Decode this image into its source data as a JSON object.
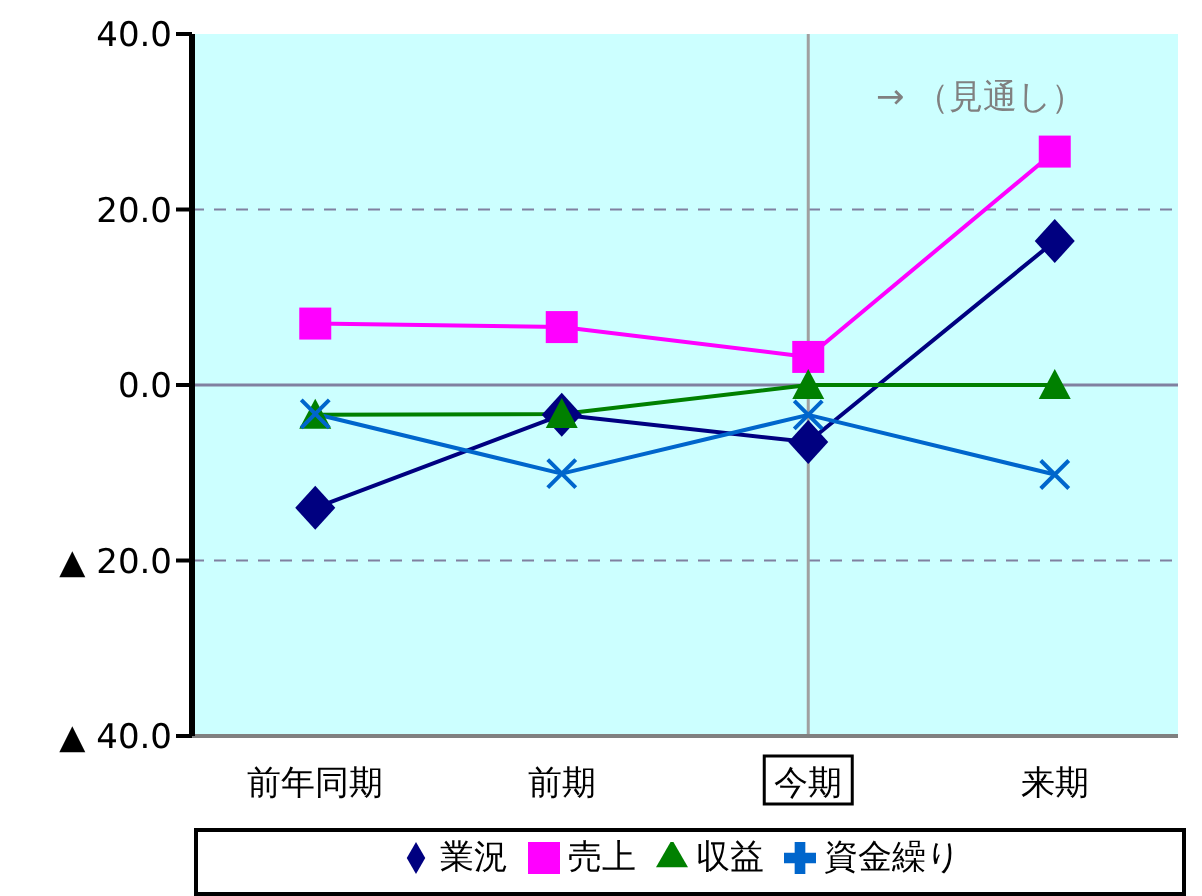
{
  "chart_data": {
    "type": "line",
    "categories": [
      "前年同期",
      "前期",
      "今期",
      "来期"
    ],
    "series": [
      {
        "name": "業況",
        "color": "#000080",
        "marker": "diamond",
        "values": [
          -14.0,
          -3.4,
          -6.5,
          16.4
        ]
      },
      {
        "name": "売上",
        "color": "#ff00ff",
        "marker": "square",
        "values": [
          7.0,
          6.6,
          3.2,
          26.6
        ]
      },
      {
        "name": "収益",
        "color": "#008000",
        "marker": "triangle",
        "values": [
          -3.4,
          -3.3,
          0,
          0
        ]
      },
      {
        "name": "資金繰り",
        "color": "#0066cc",
        "marker": "cross",
        "values": [
          -3.3,
          -10.1,
          -3.4,
          -10.2
        ]
      }
    ],
    "ylim": [
      -40,
      40
    ],
    "yticks": [
      {
        "value": -40,
        "label": "▲ 40.0"
      },
      {
        "value": -20,
        "label": "▲ 20.0"
      },
      {
        "value": 0,
        "label": "0.0"
      },
      {
        "value": 20,
        "label": "20.0"
      },
      {
        "value": 40,
        "label": "40.0"
      }
    ],
    "grid": "y",
    "legend": "bottom",
    "ref_lines": [
      {
        "axis": "y",
        "value": 0,
        "color": "#8080a0"
      },
      {
        "axis": "x",
        "value": "今期",
        "color": "#a0a0a0"
      }
    ],
    "annotations": [
      "→ （見通し）"
    ]
  }
}
